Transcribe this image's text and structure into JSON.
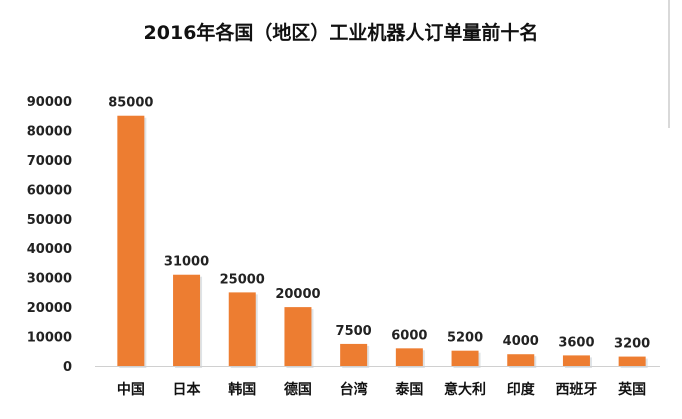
{
  "chart_data": {
    "type": "bar",
    "title": "2016年各国（地区）工业机器人订单量前十名",
    "categories": [
      "中国",
      "日本",
      "韩国",
      "德国",
      "台湾",
      "泰国",
      "意大利",
      "印度",
      "西班牙",
      "英国"
    ],
    "values": [
      85000,
      31000,
      25000,
      20000,
      7500,
      6000,
      5200,
      4000,
      3600,
      3200
    ],
    "data_labels": [
      "85000",
      "31000",
      "25000",
      "20000",
      "7500",
      "6000",
      "5200",
      "4000",
      "3600",
      "3200"
    ],
    "yticks": [
      0,
      10000,
      20000,
      30000,
      40000,
      50000,
      60000,
      70000,
      80000,
      90000
    ],
    "ylim": [
      0,
      90000
    ],
    "xlabel": "",
    "ylabel": "",
    "grid": false,
    "bar_color": "#ED7D31",
    "bar_shadow": "#B8C0C8"
  }
}
